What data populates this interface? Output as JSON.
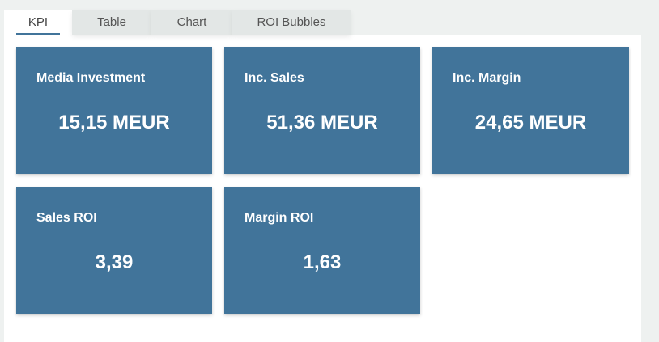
{
  "tabs": [
    {
      "label": "KPI",
      "active": true
    },
    {
      "label": "Table"
    },
    {
      "label": "Chart"
    },
    {
      "label": "ROI Bubbles"
    }
  ],
  "cards": [
    {
      "title": "Media Investment",
      "value": "15,15 MEUR"
    },
    {
      "title": "Inc. Sales",
      "value": "51,36 MEUR"
    },
    {
      "title": "Inc. Margin",
      "value": "24,65 MEUR"
    },
    {
      "title": "Sales ROI",
      "value": "3,39"
    },
    {
      "title": "Margin ROI",
      "value": "1,63"
    }
  ],
  "colors": {
    "card": "#41749a",
    "background": "#eef1f0"
  }
}
